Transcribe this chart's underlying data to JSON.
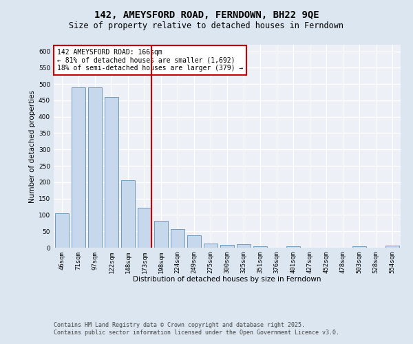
{
  "title": "142, AMEYSFORD ROAD, FERNDOWN, BH22 9QE",
  "subtitle": "Size of property relative to detached houses in Ferndown",
  "xlabel": "Distribution of detached houses by size in Ferndown",
  "ylabel": "Number of detached properties",
  "categories": [
    "46sqm",
    "71sqm",
    "97sqm",
    "122sqm",
    "148sqm",
    "173sqm",
    "198sqm",
    "224sqm",
    "249sqm",
    "275sqm",
    "300sqm",
    "325sqm",
    "351sqm",
    "376sqm",
    "401sqm",
    "427sqm",
    "452sqm",
    "478sqm",
    "503sqm",
    "528sqm",
    "554sqm"
  ],
  "values": [
    105,
    490,
    490,
    460,
    207,
    121,
    82,
    57,
    38,
    13,
    9,
    11,
    5,
    1,
    5,
    0,
    0,
    0,
    5,
    0,
    6
  ],
  "bar_color": "#c8d8ec",
  "bar_edge_color": "#7099bb",
  "red_line_index": 5,
  "annotation_text": "142 AMEYSFORD ROAD: 166sqm\n← 81% of detached houses are smaller (1,692)\n18% of semi-detached houses are larger (379) →",
  "annotation_box_color": "#ffffff",
  "annotation_box_edge_color": "#cc0000",
  "ylim": [
    0,
    620
  ],
  "yticks": [
    0,
    50,
    100,
    150,
    200,
    250,
    300,
    350,
    400,
    450,
    500,
    550,
    600
  ],
  "footer_text": "Contains HM Land Registry data © Crown copyright and database right 2025.\nContains public sector information licensed under the Open Government Licence v3.0.",
  "background_color": "#dce6f0",
  "plot_background_color": "#edf1f7",
  "grid_color": "#ffffff",
  "title_fontsize": 10,
  "subtitle_fontsize": 8.5,
  "axis_label_fontsize": 7.5,
  "tick_fontsize": 6.5,
  "annotation_fontsize": 7,
  "footer_fontsize": 6
}
